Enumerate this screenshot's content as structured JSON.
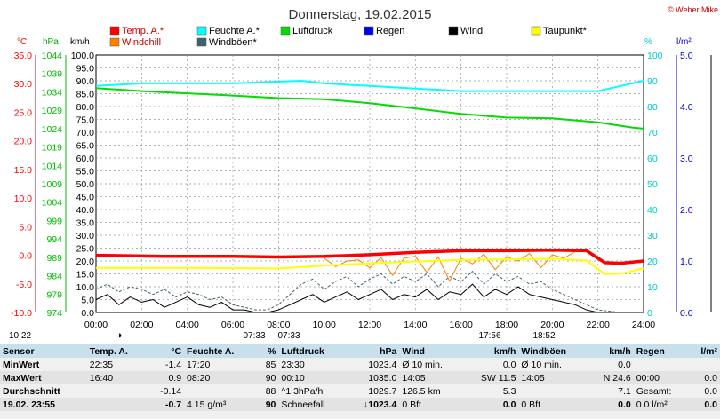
{
  "header": {
    "title": "Donnerstag, 19.02.2015",
    "credit": "© Weber Mike"
  },
  "legend": [
    {
      "label": "Temp. A.*",
      "color": "#ff0000"
    },
    {
      "label": "Feuchte A.*",
      "color": "#00ffff"
    },
    {
      "label": "Luftdruck",
      "color": "#00dd00"
    },
    {
      "label": "Regen",
      "color": "#0000ff"
    },
    {
      "label": "Wind",
      "color": "#000000"
    },
    {
      "label": "Taupunkt*",
      "color": "#ffff00"
    },
    {
      "label": "Windchill",
      "color": "#ff8000"
    },
    {
      "label": "Windböen*",
      "color": "#406070"
    }
  ],
  "axis_titles": {
    "temp": "°C",
    "press": "hPa",
    "wind": "km/h",
    "hum": "%",
    "rain": "l/m²"
  },
  "chart_data": {
    "type": "line",
    "x": [
      "00:00",
      "02:00",
      "04:00",
      "06:00",
      "08:00",
      "10:00",
      "12:00",
      "14:00",
      "16:00",
      "18:00",
      "20:00",
      "22:00",
      "24:00"
    ],
    "axes": {
      "temp": {
        "range": [
          -10,
          35
        ],
        "ticks": [
          "35.0",
          "30.0",
          "25.0",
          "20.0",
          "15.0",
          "10.0",
          "5.0",
          "0.0",
          "-5.0",
          "-10.0"
        ]
      },
      "press": {
        "range": [
          974,
          1044
        ],
        "ticks": [
          "1044",
          "1039",
          "1034",
          "1029",
          "1024",
          "1019",
          "1014",
          "1009",
          "1004",
          "999",
          "994",
          "989",
          "984",
          "979",
          "974"
        ]
      },
      "wind": {
        "range": [
          0,
          100
        ],
        "ticks": [
          "100.0",
          "95.0",
          "90.0",
          "85.0",
          "80.0",
          "75.0",
          "70.0",
          "65.0",
          "60.0",
          "55.0",
          "50.0",
          "45.0",
          "40.0",
          "35.0",
          "30.0",
          "25.0",
          "20.0",
          "15.0",
          "10.0",
          "5.0",
          "0.0"
        ]
      },
      "hum": {
        "range": [
          0,
          100
        ],
        "ticks": [
          "100",
          "90",
          "80",
          "70",
          "60",
          "50",
          "40",
          "30",
          "20",
          "10",
          "0"
        ]
      },
      "rain": {
        "range": [
          0,
          5
        ],
        "ticks": [
          "5.0",
          "4.0",
          "3.0",
          "2.0",
          "1.0",
          "0.0"
        ]
      }
    },
    "series": [
      {
        "name": "Temp. A.*",
        "axis": "temp",
        "color": "#ff0000",
        "width": 3.5,
        "points": [
          [
            0,
            0.0
          ],
          [
            3,
            -0.2
          ],
          [
            6,
            -0.2
          ],
          [
            8,
            -0.3
          ],
          [
            10,
            -0.2
          ],
          [
            12,
            0.1
          ],
          [
            14,
            0.5
          ],
          [
            16,
            0.8
          ],
          [
            18,
            0.8
          ],
          [
            20,
            0.9
          ],
          [
            21.5,
            0.8
          ],
          [
            22.3,
            -1.3
          ],
          [
            23,
            -1.4
          ],
          [
            24,
            -1.0
          ]
        ]
      },
      {
        "name": "Feuchte A.*",
        "axis": "hum",
        "color": "#00ffff",
        "width": 2,
        "points": [
          [
            0,
            88
          ],
          [
            2,
            89
          ],
          [
            6,
            89
          ],
          [
            9,
            90
          ],
          [
            10,
            89
          ],
          [
            12,
            88
          ],
          [
            14,
            87
          ],
          [
            16,
            86
          ],
          [
            18,
            86
          ],
          [
            20,
            86
          ],
          [
            22,
            86
          ],
          [
            23,
            88
          ],
          [
            24,
            90
          ]
        ]
      },
      {
        "name": "Luftdruck",
        "axis": "press",
        "color": "#00dd00",
        "width": 2,
        "points": [
          [
            0,
            1035.0
          ],
          [
            2,
            1034.2
          ],
          [
            4,
            1033.6
          ],
          [
            6,
            1033.0
          ],
          [
            8,
            1032.3
          ],
          [
            10,
            1032.0
          ],
          [
            12,
            1030.9
          ],
          [
            14,
            1029.5
          ],
          [
            16,
            1028.0
          ],
          [
            18,
            1027.0
          ],
          [
            20,
            1026.8
          ],
          [
            22,
            1025.7
          ],
          [
            23.5,
            1024.3
          ],
          [
            24,
            1024.0
          ]
        ]
      },
      {
        "name": "Taupunkt*",
        "axis": "temp",
        "color": "#ffff00",
        "width": 2,
        "points": [
          [
            0,
            -2.2
          ],
          [
            4,
            -2.2
          ],
          [
            8,
            -2.3
          ],
          [
            10,
            -1.8
          ],
          [
            12,
            -1.4
          ],
          [
            14,
            -1.1
          ],
          [
            16,
            -0.8
          ],
          [
            18,
            -0.7
          ],
          [
            20,
            -0.6
          ],
          [
            21.5,
            -0.9
          ],
          [
            22.3,
            -3.3
          ],
          [
            23,
            -3.2
          ],
          [
            24,
            -2.3
          ]
        ]
      },
      {
        "name": "Windchill",
        "axis": "temp",
        "color": "#ff8000",
        "width": 1,
        "points": [
          [
            10,
            -0.5
          ],
          [
            10.5,
            -2
          ],
          [
            11,
            -1
          ],
          [
            11.5,
            -0.8
          ],
          [
            12,
            -2.2
          ],
          [
            12.5,
            -0.4
          ],
          [
            13,
            -3.5
          ],
          [
            13.5,
            -0.5
          ],
          [
            14,
            -0.2
          ],
          [
            14.5,
            -3.0
          ],
          [
            15,
            -0.3
          ],
          [
            15.5,
            -4.5
          ],
          [
            16,
            -0.5
          ],
          [
            16.5,
            -1.5
          ],
          [
            17,
            0.2
          ],
          [
            17.5,
            -2.5
          ],
          [
            18,
            -0.3
          ],
          [
            18.5,
            -1.0
          ],
          [
            19,
            0.3
          ],
          [
            19.5,
            -2.2
          ],
          [
            20,
            0.1
          ],
          [
            20.5,
            -0.5
          ],
          [
            21,
            0.6
          ]
        ]
      },
      {
        "name": "Wind",
        "axis": "wind",
        "color": "#000000",
        "width": 1,
        "points": [
          [
            0,
            5
          ],
          [
            0.5,
            7
          ],
          [
            1,
            3
          ],
          [
            1.5,
            6
          ],
          [
            2,
            4
          ],
          [
            2.5,
            5
          ],
          [
            3,
            2
          ],
          [
            3.5,
            4
          ],
          [
            4,
            6
          ],
          [
            4.5,
            3
          ],
          [
            5,
            2
          ],
          [
            5.5,
            4
          ],
          [
            6,
            1
          ],
          [
            6.5,
            1
          ],
          [
            7,
            0
          ],
          [
            7.5,
            0
          ],
          [
            8,
            1
          ],
          [
            8.5,
            3
          ],
          [
            9,
            5
          ],
          [
            9.5,
            7
          ],
          [
            10,
            4
          ],
          [
            10.5,
            6
          ],
          [
            11,
            8
          ],
          [
            11.5,
            5
          ],
          [
            12,
            7
          ],
          [
            12.5,
            9
          ],
          [
            13,
            5
          ],
          [
            13.5,
            7
          ],
          [
            14,
            6
          ],
          [
            14.5,
            9
          ],
          [
            15,
            5
          ],
          [
            15.5,
            8
          ],
          [
            16,
            7
          ],
          [
            16.5,
            11
          ],
          [
            17,
            6
          ],
          [
            17.5,
            9
          ],
          [
            18,
            7
          ],
          [
            18.5,
            10
          ],
          [
            19,
            7
          ],
          [
            19.5,
            6
          ],
          [
            20,
            5
          ],
          [
            20.5,
            4
          ],
          [
            21,
            3
          ],
          [
            21.5,
            1
          ],
          [
            22,
            0
          ],
          [
            23,
            0
          ],
          [
            24,
            0
          ]
        ]
      },
      {
        "name": "Windböen*",
        "axis": "wind",
        "color": "#406070",
        "width": 1,
        "dash": "3,2",
        "points": [
          [
            0,
            9
          ],
          [
            0.5,
            11
          ],
          [
            1,
            8
          ],
          [
            1.5,
            10
          ],
          [
            2,
            9
          ],
          [
            2.5,
            7
          ],
          [
            3,
            9
          ],
          [
            3.5,
            6
          ],
          [
            4,
            8
          ],
          [
            4.5,
            7
          ],
          [
            5,
            5
          ],
          [
            5.5,
            6
          ],
          [
            6,
            3
          ],
          [
            6.5,
            2
          ],
          [
            7,
            1
          ],
          [
            7.5,
            1
          ],
          [
            8,
            3
          ],
          [
            8.5,
            7
          ],
          [
            9,
            11
          ],
          [
            9.5,
            13
          ],
          [
            10,
            9
          ],
          [
            10.5,
            12
          ],
          [
            11,
            14
          ],
          [
            11.5,
            10
          ],
          [
            12,
            13
          ],
          [
            12.5,
            15
          ],
          [
            13,
            11
          ],
          [
            13.5,
            14
          ],
          [
            14,
            12
          ],
          [
            14.5,
            15
          ],
          [
            15,
            10
          ],
          [
            15.5,
            14
          ],
          [
            16,
            12
          ],
          [
            16.5,
            16
          ],
          [
            17,
            11
          ],
          [
            17.5,
            15
          ],
          [
            18,
            12
          ],
          [
            18.5,
            14
          ],
          [
            19,
            11
          ],
          [
            19.5,
            12
          ],
          [
            20,
            9
          ],
          [
            20.5,
            7
          ],
          [
            21,
            5
          ],
          [
            21.5,
            3
          ],
          [
            22,
            1
          ],
          [
            23,
            0
          ],
          [
            24,
            0
          ]
        ]
      }
    ]
  },
  "markers": {
    "moon": "◑",
    "sunrise": "07:33",
    "sunrise2": "07:33",
    "sunset": "17:56",
    "sunset2": "18:52",
    "left_time": "10:22"
  },
  "stats": {
    "headers": [
      "Sensor",
      "Temp. A.",
      "°C",
      "Feuchte A.",
      "%",
      "Luftdruck",
      "hPa",
      "Wind",
      "km/h",
      "Windböen",
      "km/h",
      "Regen",
      "l/m²"
    ],
    "rows": [
      [
        "MinWert",
        "22:35",
        "-1.4",
        "17:20",
        "85",
        "23:30",
        "1023.4",
        "Ø 10 min.",
        "0.0",
        "Ø 10 min.",
        "0.0",
        "",
        ""
      ],
      [
        "MaxWert",
        "16:40",
        "0.9",
        "08:20",
        "90",
        "00:10",
        "1035.0",
        "14:05",
        "SW 11.5",
        "14:05",
        "N 24.6",
        "00:00",
        "0.0"
      ],
      [
        "Durchschnitt",
        "",
        "-0.14",
        "",
        "88",
        "^1.3hPa/h",
        "1029.7",
        "126.5 km",
        "5.3",
        "",
        "7.1",
        "Gesamt:",
        "0.0"
      ],
      [
        "19.02. 23:55",
        "",
        "-0.7",
        "4.15 g/m³",
        "90",
        "Schneefall",
        "↓1023.4",
        "0 Bft",
        "0.0",
        "0 Bft",
        "0.0",
        "0.0 l/m²",
        "0.0"
      ]
    ]
  }
}
